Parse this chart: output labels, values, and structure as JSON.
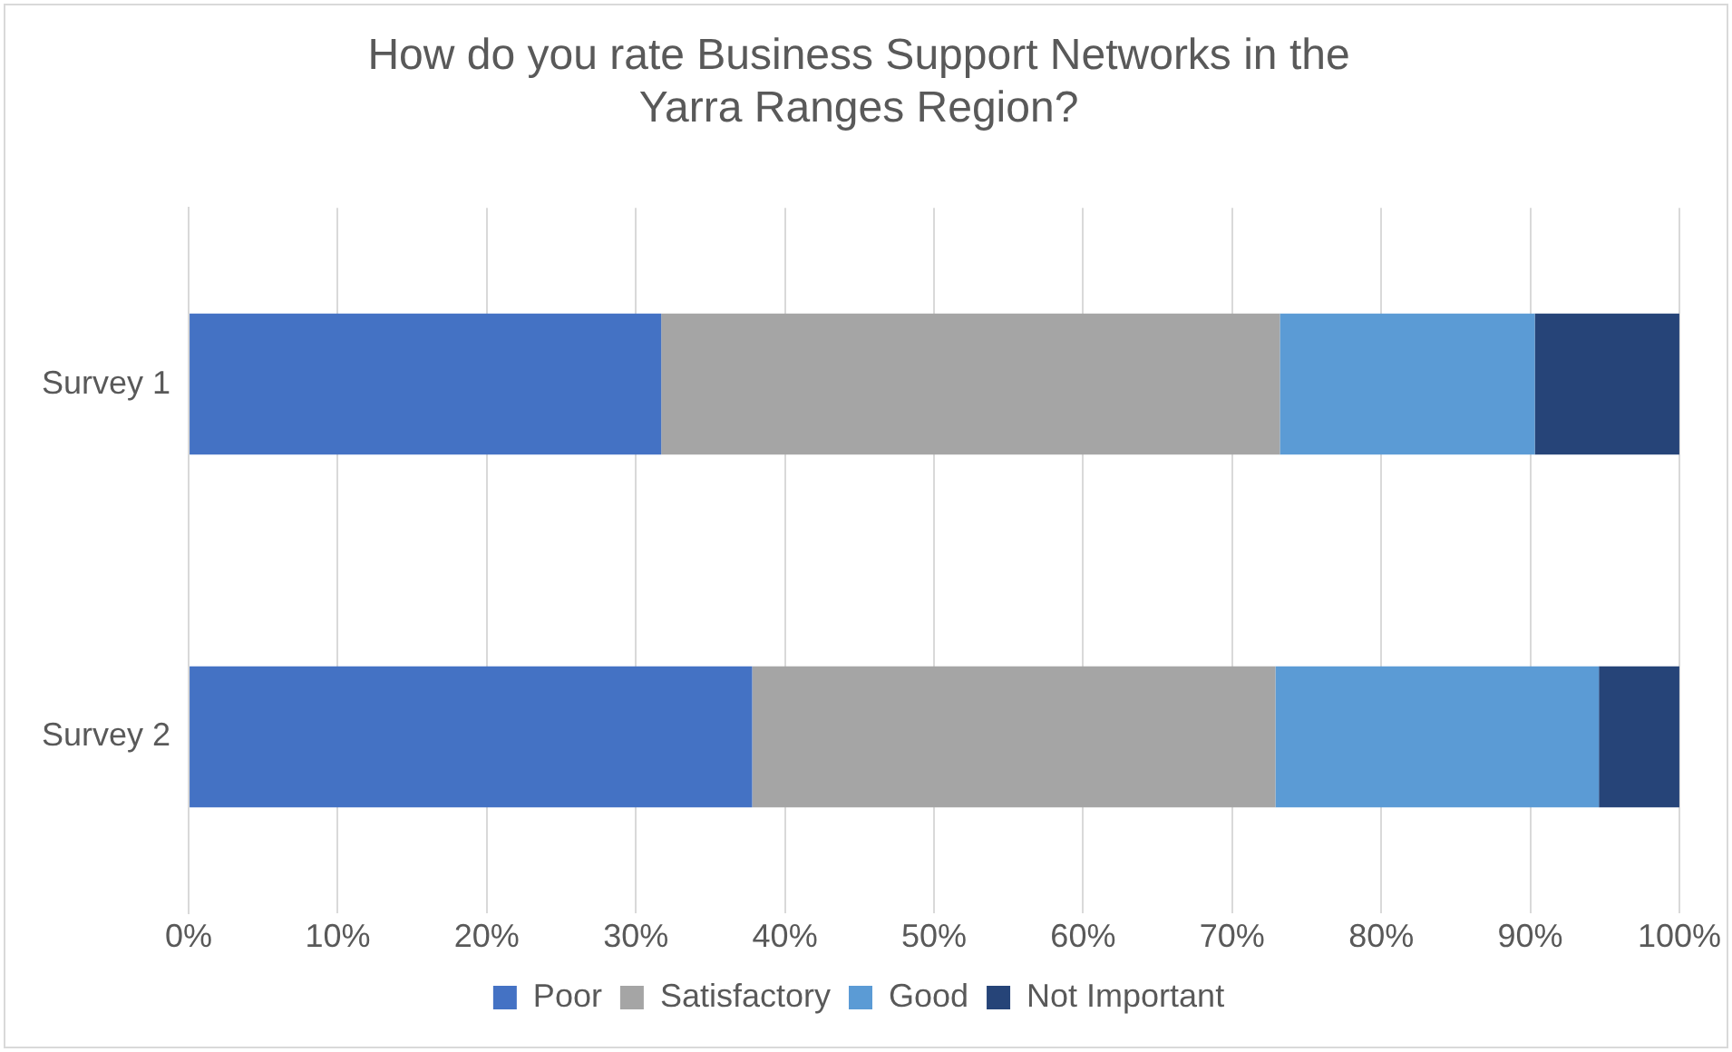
{
  "chart_data": {
    "type": "bar",
    "orientation": "horizontal",
    "stacked": true,
    "title": "How do you rate Business Support Networks in the Yarra Ranges Region?",
    "categories": [
      "Survey 1",
      "Survey 2"
    ],
    "series": [
      {
        "name": "Poor",
        "color": "#4472c4",
        "values": [
          31.7,
          37.8
        ]
      },
      {
        "name": "Satisfactory",
        "color": "#a5a5a5",
        "values": [
          41.5,
          35.1
        ]
      },
      {
        "name": "Good",
        "color": "#5b9bd5",
        "values": [
          17.1,
          21.7
        ]
      },
      {
        "name": "Not Important",
        "color": "#264478",
        "values": [
          9.7,
          5.4
        ]
      }
    ],
    "xlim": [
      0,
      100
    ],
    "xticks": [
      {
        "value": 0,
        "label": "0%"
      },
      {
        "value": 10,
        "label": "10%"
      },
      {
        "value": 20,
        "label": "20%"
      },
      {
        "value": 30,
        "label": "30%"
      },
      {
        "value": 40,
        "label": "40%"
      },
      {
        "value": 50,
        "label": "50%"
      },
      {
        "value": 60,
        "label": "60%"
      },
      {
        "value": 70,
        "label": "70%"
      },
      {
        "value": 80,
        "label": "80%"
      },
      {
        "value": 90,
        "label": "90%"
      },
      {
        "value": 100,
        "label": "100%"
      }
    ],
    "grid": "x",
    "legend": "bottom"
  }
}
